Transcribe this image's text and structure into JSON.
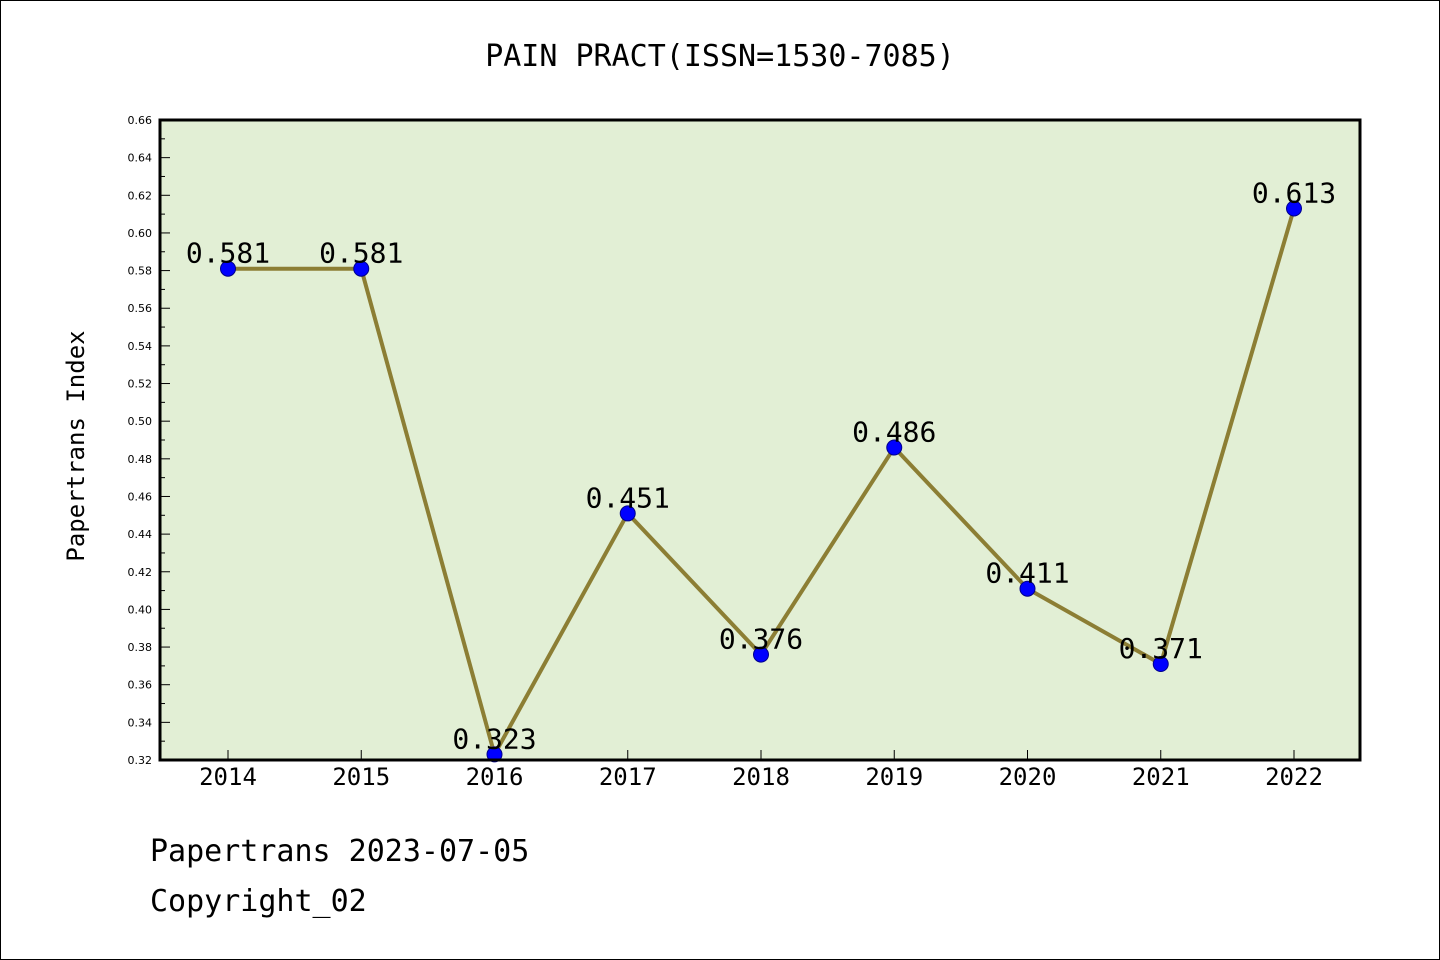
{
  "chart_data": {
    "type": "line",
    "title": "PAIN PRACT(ISSN=1530-7085)",
    "xlabel": "",
    "ylabel": "Papertrans Index",
    "categories": [
      "2014",
      "2015",
      "2016",
      "2017",
      "2018",
      "2019",
      "2020",
      "2021",
      "2022"
    ],
    "values": [
      0.581,
      0.581,
      0.323,
      0.451,
      0.376,
      0.486,
      0.411,
      0.371,
      0.613
    ],
    "data_labels": [
      "0.581",
      "0.581",
      "0.323",
      "0.451",
      "0.376",
      "0.486",
      "0.411",
      "0.371",
      "0.613"
    ],
    "ylim": [
      0.32,
      0.66
    ],
    "yticks": [
      "0.32",
      "0.34",
      "0.36",
      "0.38",
      "0.40",
      "0.42",
      "0.44",
      "0.46",
      "0.48",
      "0.50",
      "0.52",
      "0.54",
      "0.56",
      "0.58",
      "0.60",
      "0.62",
      "0.64",
      "0.66"
    ],
    "grid": false,
    "legend": "none",
    "colors": {
      "plot_background": "#e2efd5",
      "line": "#8c7e34",
      "marker": "#0000ff",
      "marker_edge": "#00008b"
    }
  },
  "footer": {
    "line1": "Papertrans 2023-07-05",
    "line2": "Copyright_02"
  }
}
